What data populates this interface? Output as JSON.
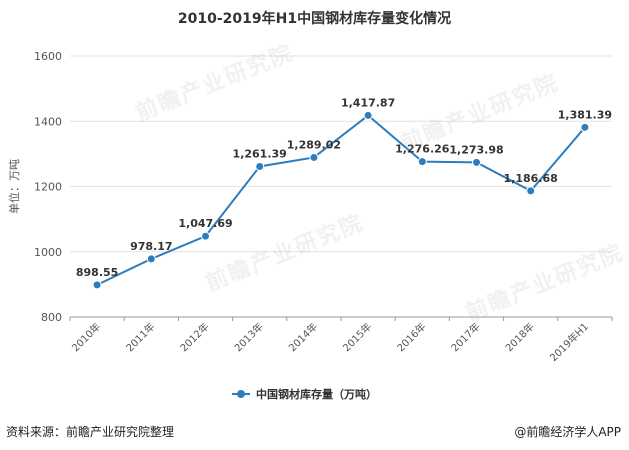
{
  "title": "2010-2019年H1中国钢材库存量变化情况",
  "source_text": "资料来源：前瞻产业研究院整理",
  "brand_text": "@前瞻经济学人APP",
  "watermark_text": "前瞻产业研究院",
  "chart_data": {
    "type": "line",
    "title": "2010-2019年H1中国钢材库存量变化情况",
    "ylabel": "单位：万吨",
    "xlabel": "",
    "categories": [
      "2010年",
      "2011年",
      "2012年",
      "2013年",
      "2014年",
      "2015年",
      "2016年",
      "2017年",
      "2018年",
      "2019年H1"
    ],
    "series": [
      {
        "name": "中国钢材库存量（万吨）",
        "values": [
          898.55,
          978.17,
          1047.69,
          1261.39,
          1289.02,
          1417.87,
          1276.26,
          1273.98,
          1186.68,
          1381.39
        ],
        "labels": [
          "898.55",
          "978.17",
          "1,047.69",
          "1,261.39",
          "1,289.02",
          "1,417.87",
          "1,276.26",
          "1,273.98",
          "1,186.68",
          "1,381.39"
        ],
        "color": "#2b7dbf"
      }
    ],
    "ylim": [
      800,
      1600
    ],
    "yticks": [
      800,
      1000,
      1200,
      1400,
      1600
    ],
    "grid": true,
    "legend_position": "bottom-center"
  }
}
